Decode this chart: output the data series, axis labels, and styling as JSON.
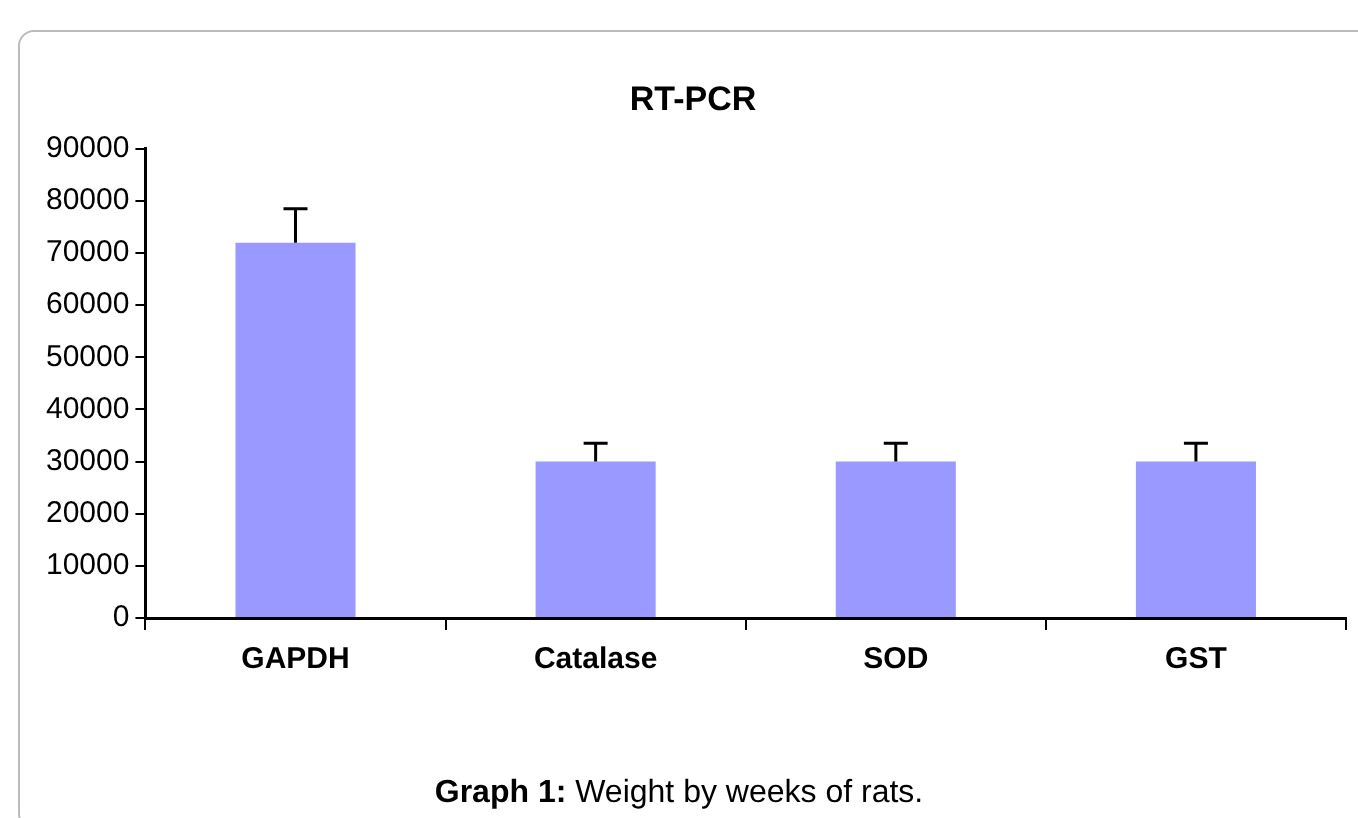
{
  "chart_data": {
    "type": "bar",
    "title": "RT-PCR",
    "categories": [
      "GAPDH",
      "Catalase",
      "SOD",
      "GST"
    ],
    "values": [
      72000,
      30000,
      30000,
      30000
    ],
    "errors": [
      [
        72000,
        78500
      ],
      [
        30000,
        33500
      ],
      [
        30000,
        33500
      ],
      [
        30000,
        33500
      ]
    ],
    "color": "#9999ff",
    "ylim": [
      0,
      90000
    ],
    "yticks": [
      0,
      10000,
      20000,
      30000,
      40000,
      50000,
      60000,
      70000,
      80000,
      90000
    ],
    "grid": false,
    "legend": false,
    "annotations": [
      "Graph 1: Weight by weeks of rats."
    ]
  }
}
